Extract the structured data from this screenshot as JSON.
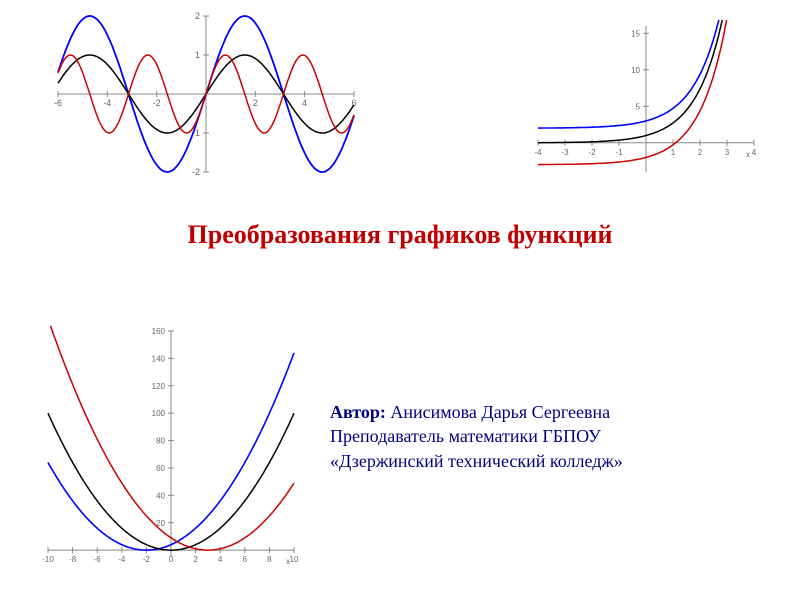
{
  "title": {
    "text": "Преобразования графиков функций",
    "color": "#c00000",
    "fontsize": 26
  },
  "author": {
    "label": "Автор:",
    "name": "Анисимова Дарья Сергеевна",
    "role": "Преподаватель математики ГБПОУ",
    "org": "«Дзержинский технический колледж»",
    "fontsize": 18,
    "label_color": "#000080",
    "text_color": "#000080"
  },
  "charts": {
    "sine": {
      "type": "line",
      "xlim": [
        -6,
        6
      ],
      "ylim": [
        -2,
        2
      ],
      "xticks": [
        -6,
        -4,
        -2,
        2,
        4,
        6
      ],
      "yticks": [
        -2,
        -1,
        1,
        2
      ],
      "tick_fontsize": 9,
      "tick_color": "#666666",
      "axis_color": "#888888",
      "background_color": "#ffffff",
      "series": [
        {
          "color": "#0000ff",
          "width": 1.8,
          "amp": 2.0,
          "freq": 1.0,
          "type": "sin"
        },
        {
          "color": "#000000",
          "width": 1.5,
          "amp": 1.0,
          "freq": 1.0,
          "type": "sin"
        },
        {
          "color": "#cc0000",
          "width": 1.5,
          "amp": 1.0,
          "freq": 2.0,
          "type": "sin"
        }
      ]
    },
    "exp": {
      "type": "line",
      "xlim": [
        -4,
        4
      ],
      "ylim": [
        -4,
        16
      ],
      "xticks": [
        -4,
        -3,
        -2,
        -1,
        1,
        2,
        3,
        4
      ],
      "yticks": [
        5,
        10,
        15
      ],
      "tick_fontsize": 8,
      "tick_color": "#666666",
      "axis_color": "#888888",
      "background_color": "#ffffff",
      "x_axis_label": "x",
      "series": [
        {
          "color": "#0000ff",
          "width": 1.6,
          "yshift": 2,
          "type": "exp"
        },
        {
          "color": "#000000",
          "width": 1.5,
          "yshift": 0,
          "type": "exp"
        },
        {
          "color": "#cc0000",
          "width": 1.5,
          "yshift": -3,
          "type": "exp"
        }
      ]
    },
    "para": {
      "type": "line",
      "xlim": [
        -10,
        10
      ],
      "ylim": [
        -5,
        160
      ],
      "xticks": [
        -10,
        -8,
        -6,
        -4,
        -2,
        0,
        2,
        4,
        6,
        8,
        10
      ],
      "yticks": [
        20,
        40,
        60,
        80,
        100,
        120,
        140,
        160
      ],
      "tick_fontsize": 8,
      "tick_color": "#666666",
      "axis_color": "#888888",
      "background_color": "#ffffff",
      "x_axis_label": "x",
      "series": [
        {
          "color": "#0000ff",
          "width": 1.6,
          "xshift": -2,
          "type": "sq"
        },
        {
          "color": "#000000",
          "width": 1.5,
          "xshift": 0,
          "type": "sq"
        },
        {
          "color": "#cc0000",
          "width": 1.5,
          "xshift": 3,
          "type": "sq"
        }
      ]
    }
  }
}
